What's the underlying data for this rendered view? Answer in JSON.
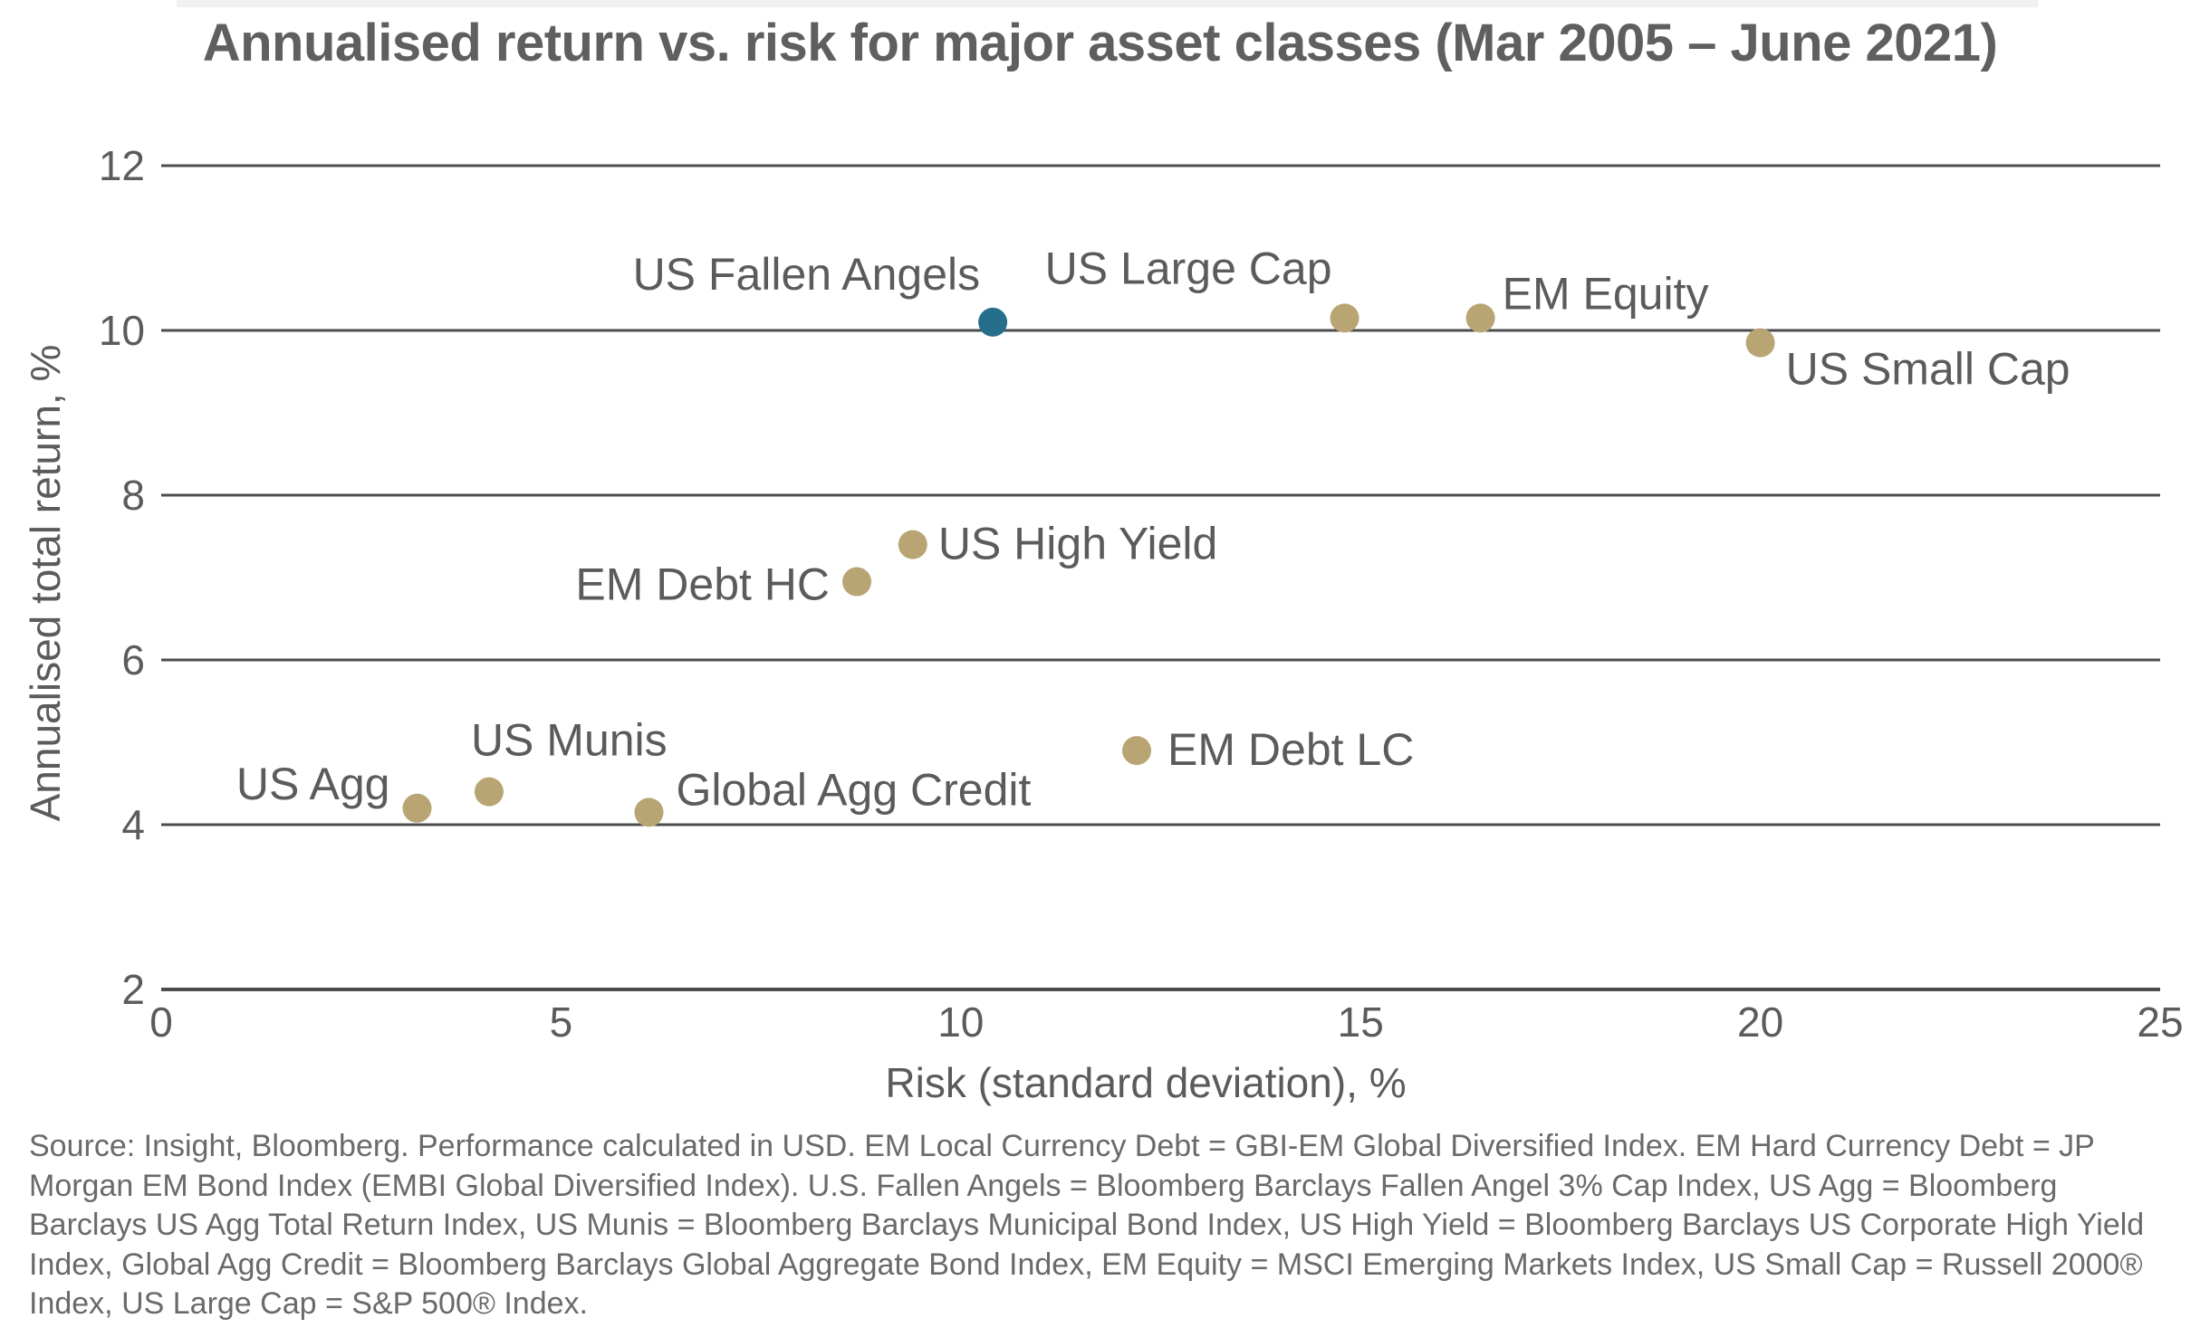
{
  "chart_data": {
    "type": "scatter",
    "title": "Annualised return vs. risk for major asset classes (Mar 2005 – June 2021)",
    "xlabel": "Risk (standard deviation), %",
    "ylabel": "Annualised total return, %",
    "xlim": [
      0,
      25
    ],
    "ylim": [
      2,
      12
    ],
    "xticks": [
      0,
      5,
      10,
      15,
      20,
      25
    ],
    "yticks": [
      2,
      4,
      6,
      8,
      10,
      12
    ],
    "x_tick_labels": [
      "0",
      "5",
      "10",
      "15",
      "20",
      "25"
    ],
    "y_tick_labels": [
      "2",
      "4",
      "6",
      "8",
      "10",
      "12"
    ],
    "grid": "horizontal",
    "legend": "none",
    "colors": {
      "default_point": "#b9a574",
      "highlight_point": "#256f8c",
      "gridline": "#4d4d4d"
    },
    "points": [
      {
        "label": "US Fallen Angels",
        "x": 10.4,
        "y": 10.1,
        "highlight": true
      },
      {
        "label": "US Large Cap",
        "x": 14.8,
        "y": 10.15,
        "highlight": false
      },
      {
        "label": "EM Equity",
        "x": 16.5,
        "y": 10.15,
        "highlight": false
      },
      {
        "label": "US Small Cap",
        "x": 20.0,
        "y": 9.85,
        "highlight": false
      },
      {
        "label": "US High Yield",
        "x": 9.4,
        "y": 7.4,
        "highlight": false
      },
      {
        "label": "EM Debt HC",
        "x": 8.7,
        "y": 6.95,
        "highlight": false
      },
      {
        "label": "EM Debt LC",
        "x": 12.2,
        "y": 4.9,
        "highlight": false
      },
      {
        "label": "US Munis",
        "x": 4.1,
        "y": 4.4,
        "highlight": false
      },
      {
        "label": "US Agg",
        "x": 3.2,
        "y": 4.2,
        "highlight": false
      },
      {
        "label": "Global Agg Credit",
        "x": 6.1,
        "y": 4.15,
        "highlight": false
      }
    ]
  },
  "source_note": "Source: Insight, Bloomberg. Performance calculated in USD. EM Local Currency Debt = GBI-EM Global Diversified Index. EM Hard Currency Debt = JP Morgan EM Bond Index (EMBI Global Diversified Index). U.S. Fallen Angels = Bloomberg Barclays Fallen Angel 3% Cap Index, US Agg = Bloomberg Barclays US Agg Total Return Index, US Munis = Bloomberg Barclays Municipal Bond Index, US High Yield = Bloomberg Barclays US Corporate High Yield Index, Global Agg Credit = Bloomberg Barclays Global Aggregate Bond Index, EM Equity = MSCI Emerging Markets Index, US Small Cap = Russell 2000® Index, US Large Cap = S&P 500® Index."
}
